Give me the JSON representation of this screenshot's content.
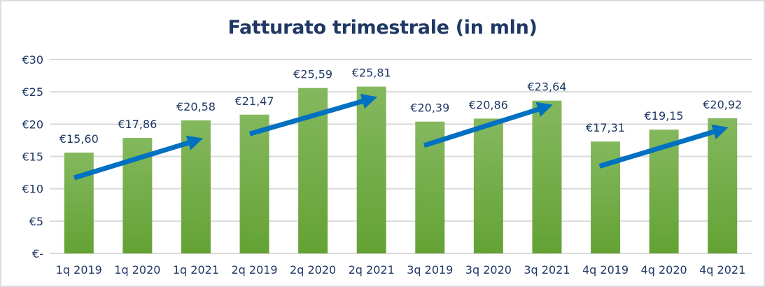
{
  "chart_data": {
    "type": "bar",
    "title": "Fatturato trimestrale (in mln)",
    "xlabel": "",
    "ylabel": "",
    "categories": [
      "1q 2019",
      "1q 2020",
      "1q 2021",
      "2q 2019",
      "2q 2020",
      "2q 2021",
      "3q 2019",
      "3q 2020",
      "3q 2021",
      "4q 2019",
      "4q 2020",
      "4q 2021"
    ],
    "values": [
      15.6,
      17.86,
      20.58,
      21.47,
      25.59,
      25.81,
      20.39,
      20.86,
      23.64,
      17.31,
      19.15,
      20.92
    ],
    "data_labels": [
      "€15,60",
      "€17,86",
      "€20,58",
      "€21,47",
      "€25,59",
      "€25,81",
      "€20,39",
      "€20,86",
      "€23,64",
      "€17,31",
      "€19,15",
      "€20,92"
    ],
    "ylim": [
      0,
      30
    ],
    "yticks": [
      0,
      5,
      10,
      15,
      20,
      25,
      30
    ],
    "ytick_labels": [
      "€-",
      "€5",
      "€10",
      "€15",
      "€20",
      "€25",
      "€30"
    ],
    "grid": true,
    "legend": "none",
    "bar_color": "#70ad47",
    "arrow_color": "#0070c0",
    "annotations": [
      {
        "type": "arrow",
        "from": [
          -0.08,
          11.7
        ],
        "to": [
          2.12,
          17.8
        ]
      },
      {
        "type": "arrow",
        "from": [
          2.92,
          18.5
        ],
        "to": [
          5.1,
          24.2
        ]
      },
      {
        "type": "arrow",
        "from": [
          5.9,
          16.7
        ],
        "to": [
          8.1,
          23.0
        ]
      },
      {
        "type": "arrow",
        "from": [
          8.9,
          13.5
        ],
        "to": [
          11.1,
          19.5
        ]
      }
    ]
  }
}
